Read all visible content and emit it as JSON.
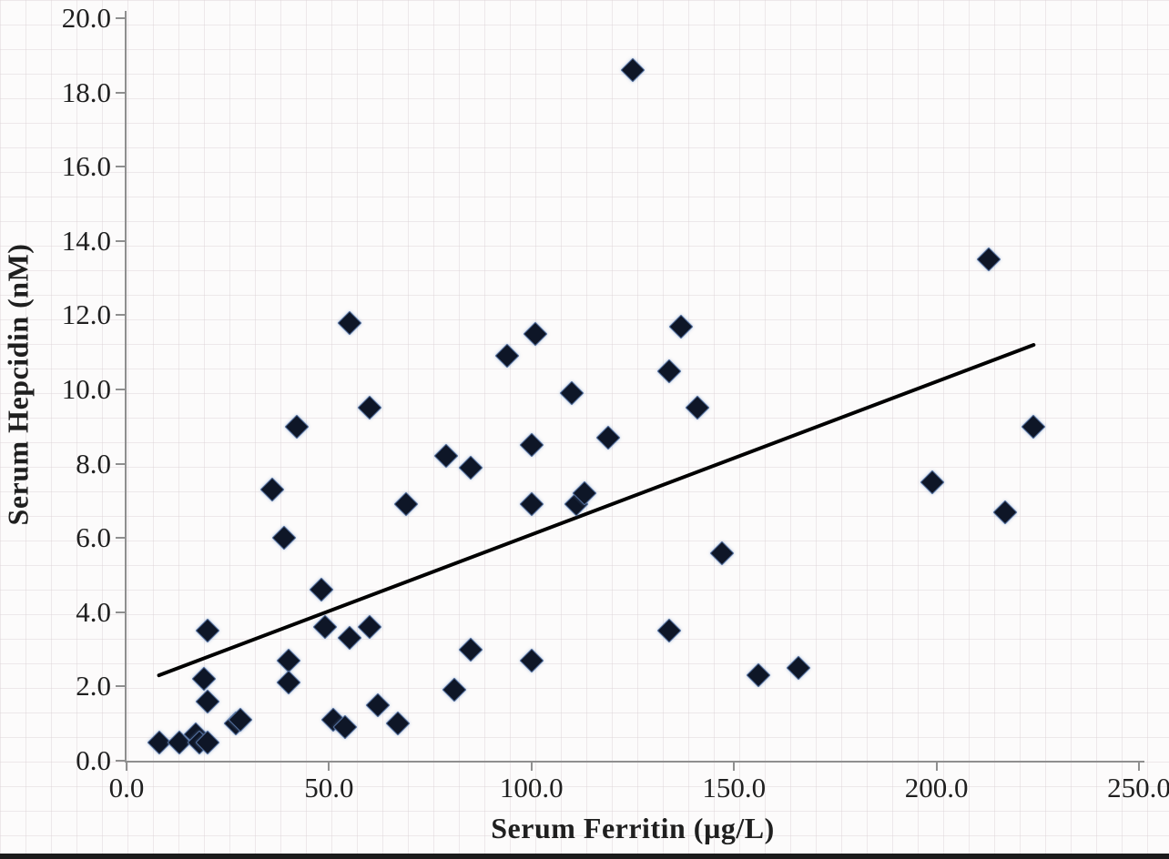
{
  "chart_data": {
    "type": "scatter",
    "title": "",
    "xlabel": "Serum Ferritin (µg/L)",
    "ylabel": "Serum Hepcidin (nM)",
    "xlim": [
      0,
      250
    ],
    "ylim": [
      0,
      20
    ],
    "x_tick_values": [
      0,
      50,
      100,
      150,
      200,
      250
    ],
    "x_tick_labels": [
      "0.0",
      "50.0",
      "100.0",
      "150.0",
      "200.0",
      "250.0"
    ],
    "y_tick_values": [
      0,
      2,
      4,
      6,
      8,
      10,
      12,
      14,
      16,
      18,
      20
    ],
    "y_tick_labels": [
      "0.0",
      "2.0",
      "4.0",
      "6.0",
      "8.0",
      "10.0",
      "12.0",
      "14.0",
      "16.0",
      "18.0",
      "20.0"
    ],
    "grid": "faint fine background grid",
    "legend": "none",
    "marker": "diamond",
    "marker_color": "#0e1627",
    "points": [
      [
        8,
        0.5
      ],
      [
        13,
        0.5
      ],
      [
        17,
        0.7
      ],
      [
        18,
        0.5
      ],
      [
        20,
        0.5
      ],
      [
        20,
        1.6
      ],
      [
        19,
        2.2
      ],
      [
        20,
        3.5
      ],
      [
        27,
        1.0
      ],
      [
        28,
        1.1
      ],
      [
        36,
        7.3
      ],
      [
        39,
        6.0
      ],
      [
        40,
        2.7
      ],
      [
        40,
        2.1
      ],
      [
        42,
        9.0
      ],
      [
        48,
        4.6
      ],
      [
        49,
        3.6
      ],
      [
        51,
        1.1
      ],
      [
        54,
        0.9
      ],
      [
        55,
        3.3
      ],
      [
        55,
        11.8
      ],
      [
        60,
        9.5
      ],
      [
        60,
        3.6
      ],
      [
        62,
        1.5
      ],
      [
        67,
        1.0
      ],
      [
        69,
        6.9
      ],
      [
        79,
        8.2
      ],
      [
        81,
        1.9
      ],
      [
        85,
        7.9
      ],
      [
        85,
        3.0
      ],
      [
        94,
        10.9
      ],
      [
        100,
        8.5
      ],
      [
        100,
        6.9
      ],
      [
        100,
        2.7
      ],
      [
        101,
        11.5
      ],
      [
        110,
        9.9
      ],
      [
        111,
        6.9
      ],
      [
        113,
        7.2
      ],
      [
        119,
        8.7
      ],
      [
        125,
        18.6
      ],
      [
        134,
        10.5
      ],
      [
        134,
        3.5
      ],
      [
        137,
        11.7
      ],
      [
        141,
        9.5
      ],
      [
        147,
        5.6
      ],
      [
        156,
        2.3
      ],
      [
        166,
        2.5
      ],
      [
        199,
        7.5
      ],
      [
        213,
        13.5
      ],
      [
        217,
        6.7
      ],
      [
        224,
        9.0
      ]
    ],
    "trendline": {
      "type": "linear",
      "x1": 8,
      "y1": 2.3,
      "x2": 224,
      "y2": 11.2,
      "color": "#000000",
      "width": 4
    }
  },
  "colors": {
    "axis": "#8f8f8f",
    "marker_fill": "#0e1627",
    "marker_halo": "#54709f",
    "background": "#fcfbfb",
    "bottom_bar": "#1b1b1b"
  }
}
